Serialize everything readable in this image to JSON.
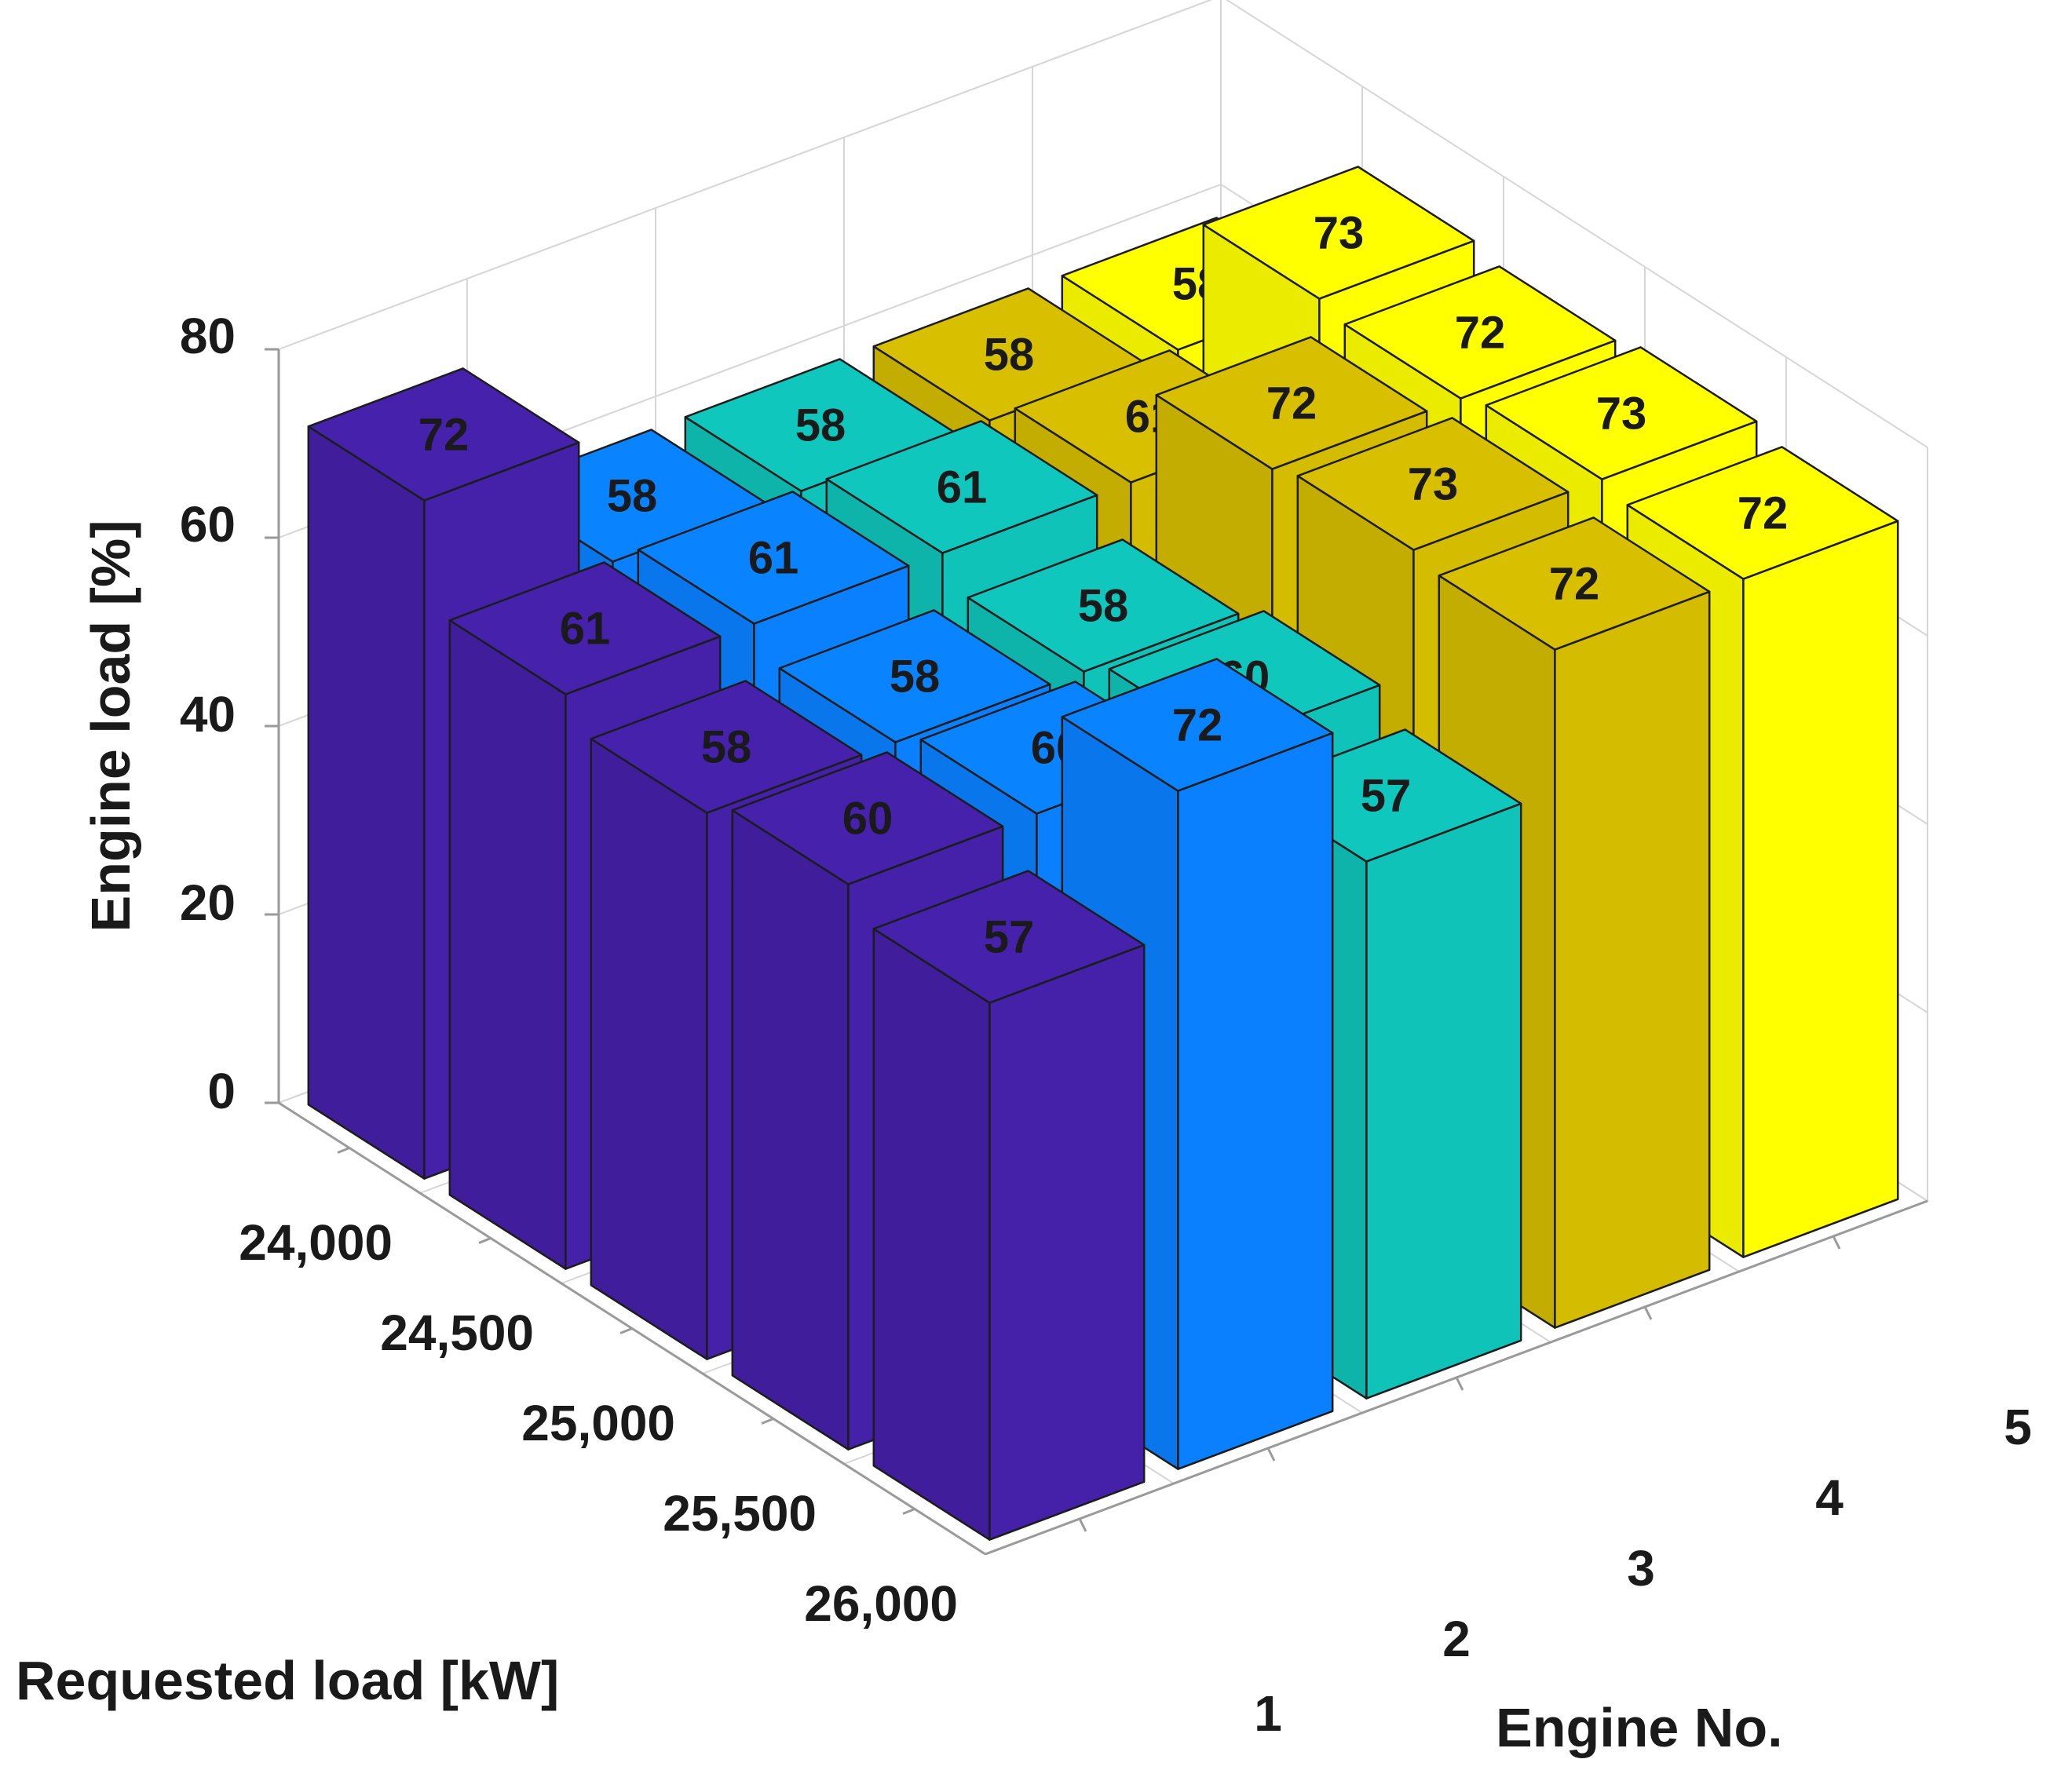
{
  "chart_data": {
    "type": "bar3d",
    "x_categories": [
      "24,000",
      "24,500",
      "25,000",
      "25,500",
      "26,000"
    ],
    "y_categories": [
      "1",
      "2",
      "3",
      "4",
      "5"
    ],
    "xlabel": "Requested load [kW]",
    "ylabel": "Engine No.",
    "zlabel": "Engine load [%]",
    "z_ticks": [
      "0",
      "20",
      "40",
      "60",
      "80"
    ],
    "zlim": [
      0,
      80
    ],
    "grid": true,
    "series": [
      {
        "engine": "1",
        "values": [
          72,
          61,
          58,
          60,
          57
        ],
        "color": "#4520a8"
      },
      {
        "engine": "2",
        "values": [
          58,
          61,
          58,
          60,
          72
        ],
        "color": "#0a80ff"
      },
      {
        "engine": "3",
        "values": [
          58,
          61,
          58,
          60,
          57
        ],
        "color": "#0fc3b8"
      },
      {
        "engine": "4",
        "values": [
          58,
          61,
          72,
          73,
          72
        ],
        "color": "#d4bc00"
      },
      {
        "engine": "5",
        "values": [
          58,
          73,
          72,
          73,
          72
        ],
        "color": "#ffff00"
      }
    ]
  }
}
